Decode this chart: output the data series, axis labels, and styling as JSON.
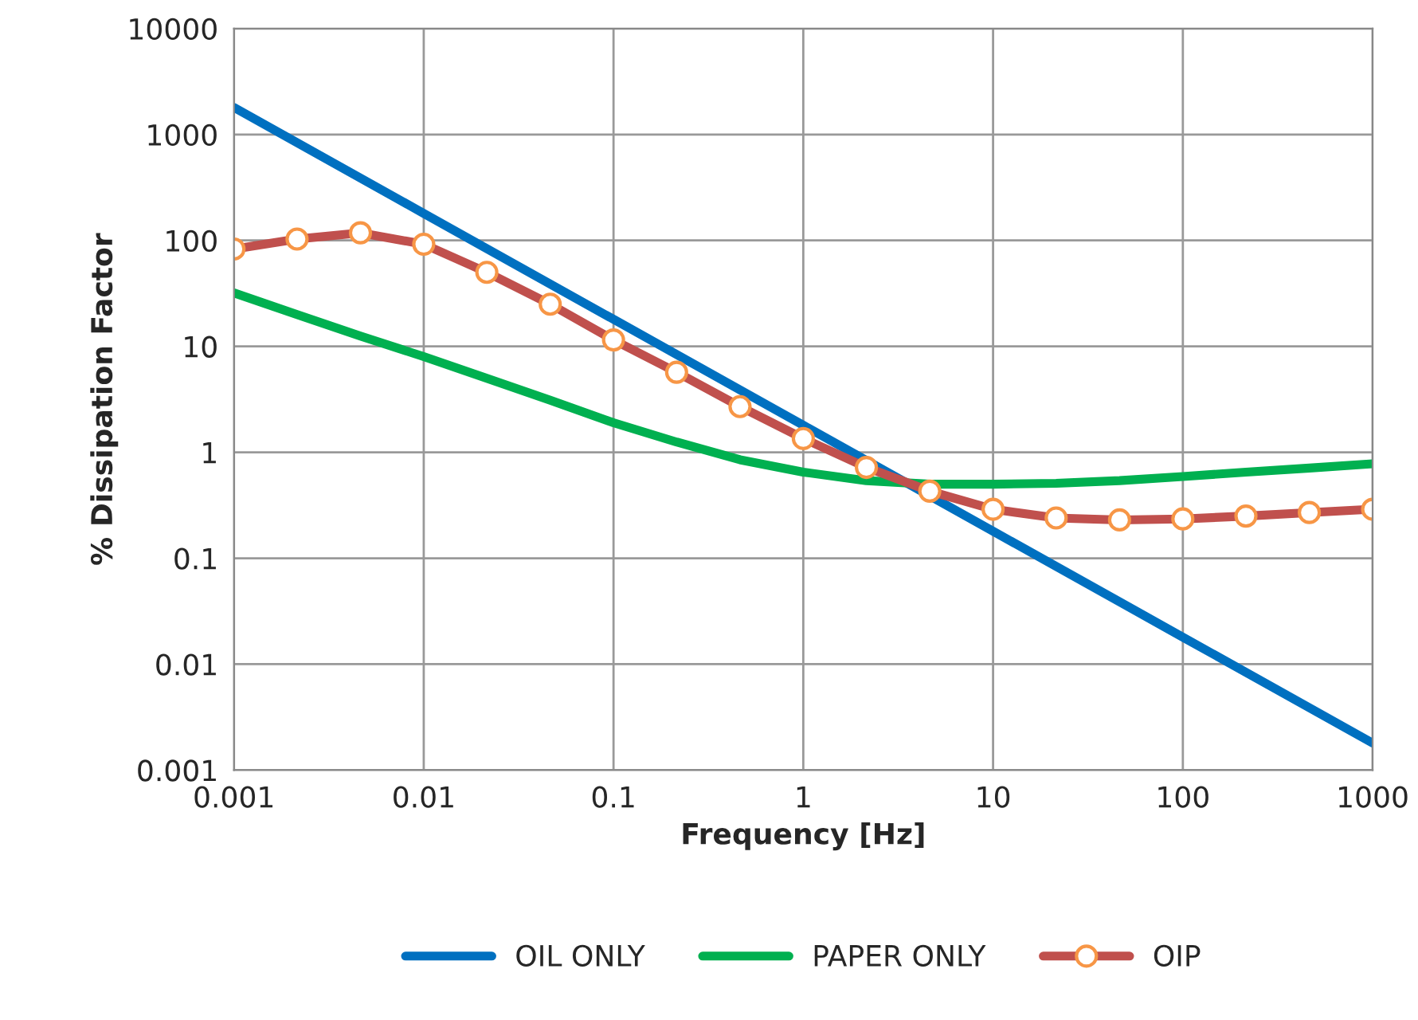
{
  "chart_data": {
    "type": "line",
    "xlabel": "Frequency [Hz]",
    "ylabel": "% Dissipation Factor",
    "log": "xy",
    "grid": true,
    "legend": "bottom",
    "line_style": "solid",
    "xlim": [
      0.001,
      1000
    ],
    "xticks": [
      0.001,
      0.01,
      0.1,
      1,
      10,
      100,
      1000
    ],
    "ylim": [
      0.001,
      10000
    ],
    "yticks": [
      0.001,
      0.01,
      0.1,
      1,
      10,
      100,
      1000,
      10000
    ],
    "series": [
      {
        "name": "OIL ONLY",
        "color": "#0070c0",
        "marker": "none",
        "x": [
          0.001,
          0.01,
          0.1,
          1,
          10,
          100,
          1000
        ],
        "values": [
          1800,
          180,
          18,
          1.8,
          0.18,
          0.018,
          0.0018
        ]
      },
      {
        "name": "PAPER ONLY",
        "color": "#00b050",
        "marker": "none",
        "x": [
          0.001,
          0.00215,
          0.00464,
          0.01,
          0.0215,
          0.0464,
          0.1,
          0.215,
          0.464,
          1,
          2.15,
          4.64,
          10,
          21.5,
          46.4,
          100,
          215,
          464,
          1000
        ],
        "values": [
          32,
          20,
          12.5,
          8,
          5,
          3.1,
          1.9,
          1.25,
          0.85,
          0.65,
          0.54,
          0.5,
          0.5,
          0.51,
          0.54,
          0.59,
          0.65,
          0.71,
          0.78
        ]
      },
      {
        "name": "OIP",
        "color": "#c0504d",
        "marker": "circle",
        "x": [
          0.001,
          0.00215,
          0.00464,
          0.01,
          0.0215,
          0.0464,
          0.1,
          0.215,
          0.464,
          1,
          2.15,
          4.64,
          10,
          21.5,
          46.4,
          100,
          215,
          464,
          1000
        ],
        "values": [
          83,
          103,
          118,
          92,
          50,
          25,
          11.5,
          5.7,
          2.7,
          1.35,
          0.72,
          0.43,
          0.29,
          0.24,
          0.23,
          0.235,
          0.25,
          0.27,
          0.29
        ]
      }
    ]
  }
}
